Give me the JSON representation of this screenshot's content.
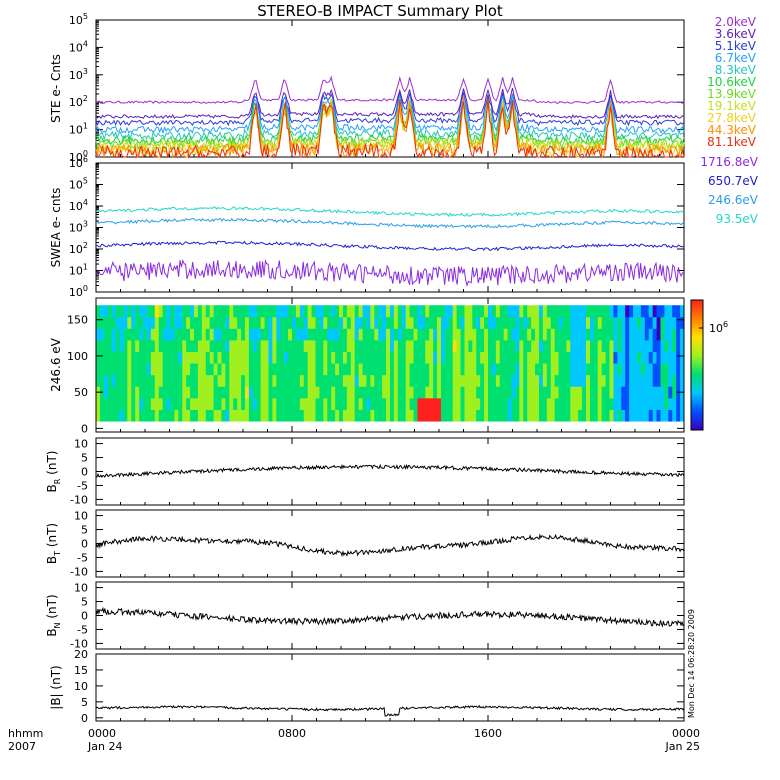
{
  "title": "STEREO-B IMPACT Summary Plot",
  "x_axis": {
    "left_labels": [
      "hhmm",
      "2007"
    ],
    "ticks": [
      {
        "hour": 0,
        "line1": "0000",
        "line2": "Jan 24"
      },
      {
        "hour": 8,
        "line1": "0800",
        "line2": ""
      },
      {
        "hour": 16,
        "line1": "1600",
        "line2": ""
      },
      {
        "hour": 24,
        "line1": "0000",
        "line2": "Jan 25"
      }
    ],
    "range_hours": [
      0,
      24
    ]
  },
  "timestamp": "Mon Dec 14 06:28:20 2009",
  "chart_data": [
    {
      "id": "ste",
      "type": "line",
      "ylabel": "STE e- Cnts",
      "yscale": "log",
      "ylim_exp": [
        0,
        5
      ],
      "tick_exponents": [
        0,
        1,
        2,
        3,
        4,
        5
      ],
      "tick_base": "10",
      "series": [
        {
          "name": "2.0keV",
          "color": "#9b30d0",
          "level": 100
        },
        {
          "name": "3.6keV",
          "color": "#5a22b8",
          "level": 30
        },
        {
          "name": "5.1keV",
          "color": "#2a3ce0",
          "level": 18
        },
        {
          "name": "6.7keV",
          "color": "#2aa0ff",
          "level": 10
        },
        {
          "name": "8.3keV",
          "color": "#22c8b8",
          "level": 6
        },
        {
          "name": "10.6keV",
          "color": "#22d040",
          "level": 4
        },
        {
          "name": "13.9keV",
          "color": "#66dd22",
          "level": 3
        },
        {
          "name": "19.1keV",
          "color": "#c8e020",
          "level": 2.5
        },
        {
          "name": "27.8keV",
          "color": "#f0d020",
          "level": 2
        },
        {
          "name": "44.3keV",
          "color": "#ff9000",
          "level": 1.6
        },
        {
          "name": "81.1keV",
          "color": "#e83010",
          "level": 1.3
        }
      ],
      "bursts_hours": [
        6.5,
        7.7,
        9.3,
        9.6,
        12.4,
        12.8,
        15.0,
        16.0,
        16.6,
        17.0,
        21.0
      ]
    },
    {
      "id": "swea",
      "type": "line",
      "ylabel": "SWEA e- cnts",
      "yscale": "log",
      "ylim_exp": [
        0,
        6
      ],
      "tick_exponents": [
        0,
        1,
        2,
        3,
        4,
        5,
        6
      ],
      "tick_base": "10",
      "series": [
        {
          "name": "1716.8eV",
          "color": "#8a2be2",
          "level": 8
        },
        {
          "name": "650.7eV",
          "color": "#2020d0",
          "level": 140
        },
        {
          "name": "246.6eV",
          "color": "#2a9ee8",
          "level": 1600
        },
        {
          "name": "93.5eV",
          "color": "#22d8c8",
          "level": 5500
        }
      ]
    },
    {
      "id": "pad",
      "type": "heatmap",
      "ylabel": "246.6 eV",
      "ylim": [
        -5,
        180
      ],
      "yticks": [
        0,
        50,
        100,
        150
      ],
      "colorbar": {
        "label_base": "10",
        "label_exp": "6",
        "colors": [
          "#3a00c0",
          "#0050ff",
          "#00c8ff",
          "#00e070",
          "#a0f020",
          "#ffe000",
          "#ff8000",
          "#ff2020"
        ]
      }
    },
    {
      "id": "br",
      "type": "line",
      "ylabel_main": "B",
      "ylabel_sub": "R",
      "ylabel_unit": "(nT)",
      "ylim": [
        -12,
        12
      ],
      "yticks": [
        10,
        5,
        0,
        -5,
        -10
      ]
    },
    {
      "id": "bt",
      "type": "line",
      "ylabel_main": "B",
      "ylabel_sub": "T",
      "ylabel_unit": "(nT)",
      "ylim": [
        -12,
        12
      ],
      "yticks": [
        10,
        5,
        0,
        -5,
        -10
      ]
    },
    {
      "id": "bn",
      "type": "line",
      "ylabel_main": "B",
      "ylabel_sub": "N",
      "ylabel_unit": "(nT)",
      "ylim": [
        -12,
        12
      ],
      "yticks": [
        10,
        5,
        0,
        -5,
        -10
      ]
    },
    {
      "id": "bmag",
      "type": "line",
      "ylabel": "|B| (nT)",
      "ylim": [
        -1,
        20
      ],
      "yticks": [
        20,
        15,
        10,
        5,
        0
      ]
    }
  ]
}
